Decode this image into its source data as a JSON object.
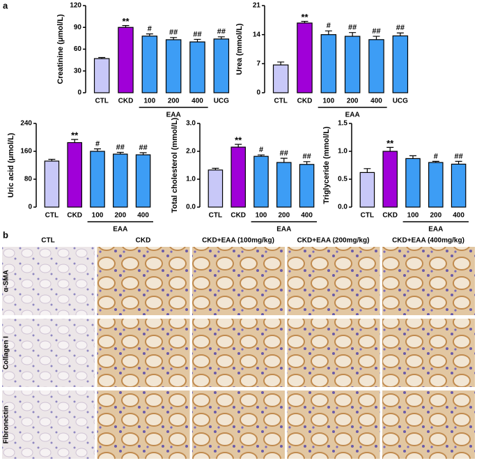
{
  "panel_a_label": "a",
  "chart_data": [
    {
      "type": "bar",
      "ylabel": "Creatinine (μmol/L)",
      "categories": [
        "CTL",
        "CKD",
        "100",
        "200",
        "400",
        "UCG"
      ],
      "values": [
        47,
        90,
        78,
        73,
        70,
        74
      ],
      "errors": [
        1.5,
        2.5,
        3,
        3,
        3.5,
        3
      ],
      "colors": [
        "#c8c8f8",
        "#a000d8",
        "#3d9df5",
        "#3d9df5",
        "#3d9df5",
        "#3d9df5"
      ],
      "annotations": [
        null,
        "**",
        "#",
        "##",
        "##",
        "##"
      ],
      "group_label": "EAA",
      "ylim": [
        0,
        120
      ],
      "yticks": [
        0,
        30,
        60,
        90,
        120
      ]
    },
    {
      "type": "bar",
      "ylabel": "Urea (mmol/L)",
      "categories": [
        "CTL",
        "CKD",
        "100",
        "200",
        "400",
        "UCG"
      ],
      "values": [
        6.7,
        16.8,
        14,
        13.6,
        12.8,
        13.7
      ],
      "errors": [
        0.7,
        0.4,
        0.9,
        0.9,
        0.8,
        0.7
      ],
      "colors": [
        "#c8c8f8",
        "#a000d8",
        "#3d9df5",
        "#3d9df5",
        "#3d9df5",
        "#3d9df5"
      ],
      "annotations": [
        null,
        "**",
        "#",
        "##",
        "##",
        "##"
      ],
      "group_label": "EAA",
      "ylim": [
        0,
        21
      ],
      "yticks": [
        0,
        7,
        14,
        21
      ]
    },
    {
      "type": "bar",
      "ylabel": "Uric acid  (μmol/L)",
      "categories": [
        "CTL",
        "CKD",
        "100",
        "200",
        "400"
      ],
      "values": [
        132,
        185,
        160,
        152,
        150
      ],
      "errors": [
        5,
        9,
        7,
        5,
        6
      ],
      "colors": [
        "#c8c8f8",
        "#a000d8",
        "#3d9df5",
        "#3d9df5",
        "#3d9df5"
      ],
      "annotations": [
        null,
        "**",
        "#",
        "##",
        "##"
      ],
      "group_label": "EAA",
      "ylim": [
        0,
        240
      ],
      "yticks": [
        0,
        80,
        160,
        240
      ]
    },
    {
      "type": "bar",
      "ylabel": "Total cholesterol (mmol/L)",
      "categories": [
        "CTL",
        "CKD",
        "100",
        "200",
        "400"
      ],
      "values": [
        1.33,
        2.15,
        1.82,
        1.6,
        1.53
      ],
      "errors": [
        0.06,
        0.1,
        0.05,
        0.15,
        0.1
      ],
      "colors": [
        "#c8c8f8",
        "#a000d8",
        "#3d9df5",
        "#3d9df5",
        "#3d9df5"
      ],
      "annotations": [
        null,
        "**",
        "#",
        "##",
        "##"
      ],
      "group_label": "EAA",
      "ylim": [
        0,
        3
      ],
      "yticks": [
        {
          "value": 0,
          "label": "0.0"
        },
        {
          "value": 1,
          "label": "1.0"
        },
        {
          "value": 2,
          "label": "2.0"
        },
        {
          "value": 3,
          "label": "3.0"
        }
      ]
    },
    {
      "type": "bar",
      "ylabel": "Triglyceride (mmol/L)",
      "categories": [
        "CTL",
        "CKD",
        "100",
        "200",
        "400"
      ],
      "values": [
        0.62,
        1.0,
        0.87,
        0.8,
        0.77
      ],
      "errors": [
        0.07,
        0.07,
        0.05,
        0.02,
        0.05
      ],
      "colors": [
        "#c8c8f8",
        "#a000d8",
        "#3d9df5",
        "#3d9df5",
        "#3d9df5"
      ],
      "annotations": [
        null,
        "**",
        null,
        "#",
        "##"
      ],
      "group_label": "EAA",
      "ylim": [
        0,
        1.5
      ],
      "yticks": [
        {
          "value": 0,
          "label": "0.0"
        },
        {
          "value": 0.5,
          "label": "0.5"
        },
        {
          "value": 1,
          "label": "1.0"
        },
        {
          "value": 1.5,
          "label": "1.5"
        }
      ]
    }
  ],
  "panel_b": {
    "label": "b",
    "columns": [
      "CTL",
      "CKD",
      "CKD+EAA (100mg/kg)",
      "CKD+EAA (200mg/kg)",
      "CKD+EAA (400mg/kg)"
    ],
    "rows": [
      "α-SMA",
      "Collagen I",
      "Fibronectin"
    ]
  }
}
